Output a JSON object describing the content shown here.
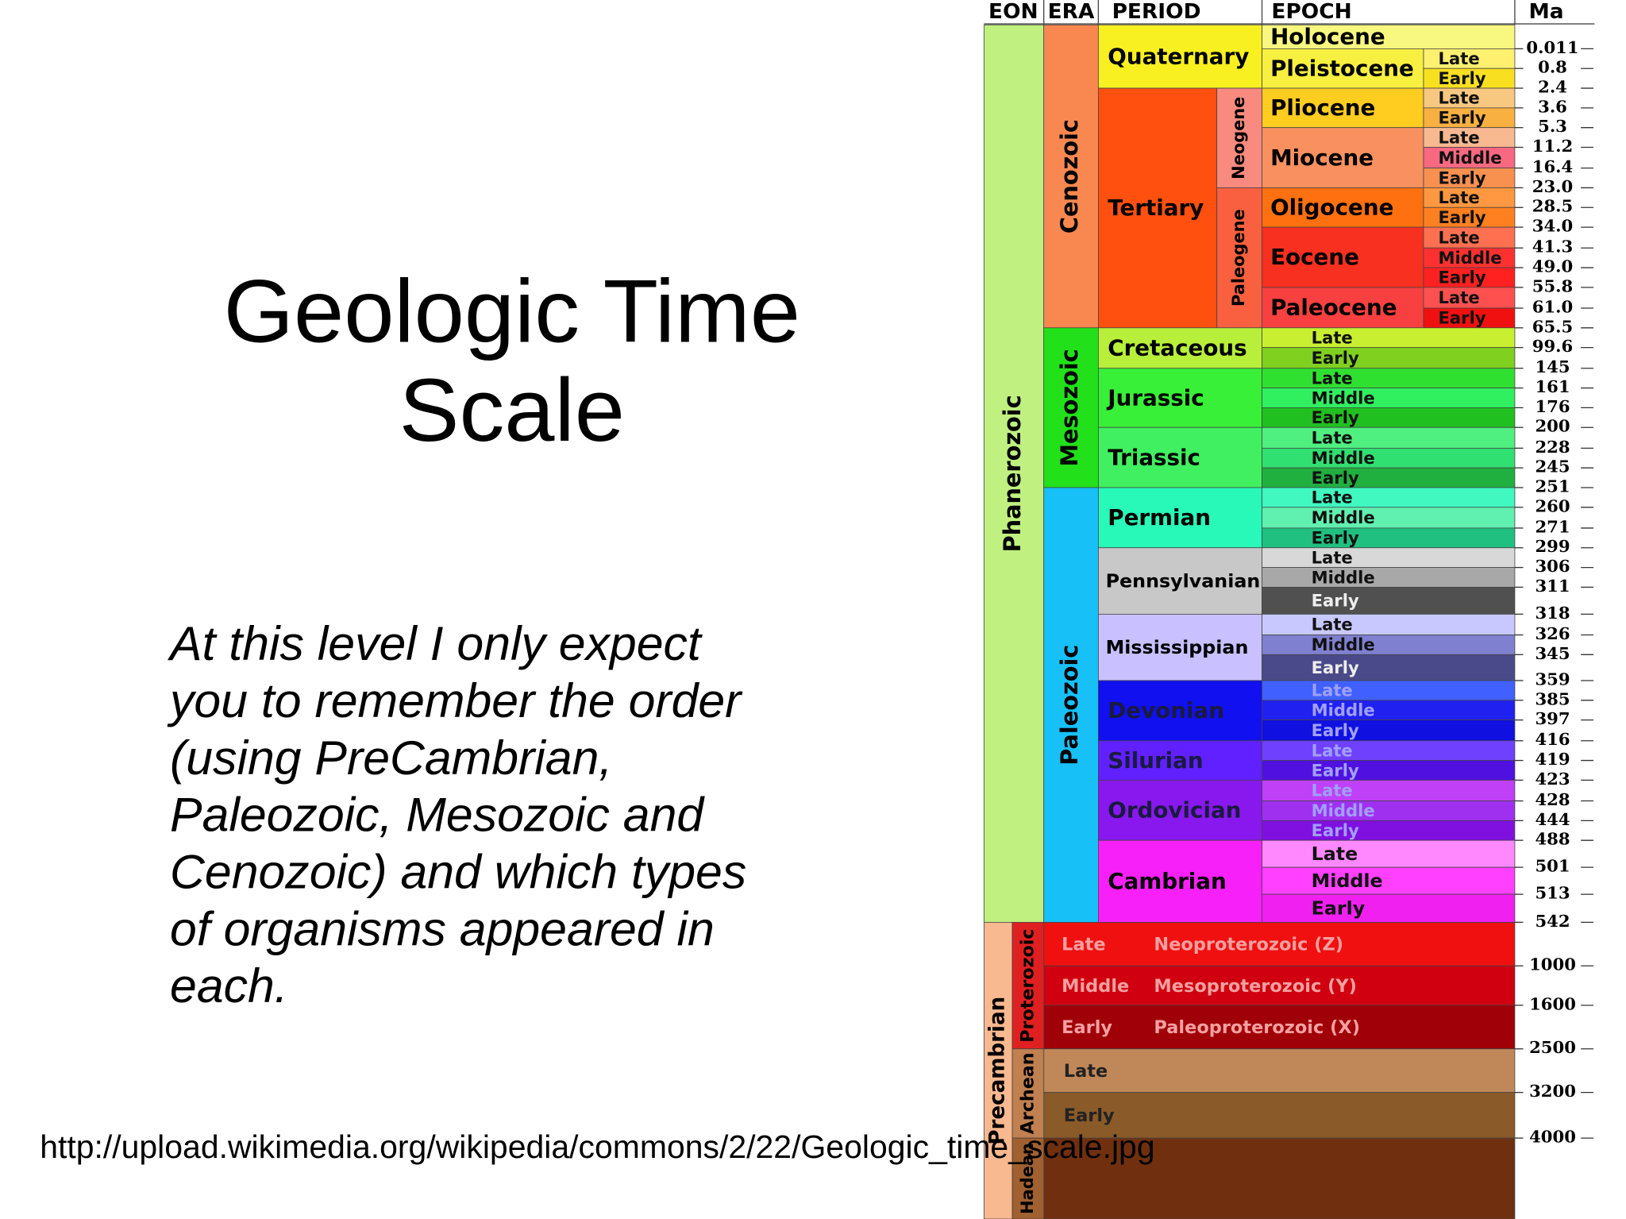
{
  "title": [
    "Geologic Time",
    "Scale"
  ],
  "body": [
    "At this level I only expect",
    "you to remember the order",
    "(using PreCambrian,",
    "Paleozoic, Mesozoic and",
    "Cenozoic) and which types",
    "of organisms appeared in",
    "each."
  ],
  "source": "http://upload.wikimedia.org/wikipedia/commons/2/22/Geologic_time_scale.jpg",
  "chart": {
    "headers": [
      "EON",
      "ERA",
      "PERIOD",
      "EPOCH",
      "Ma"
    ],
    "eons": [
      "Phanerozoic",
      "Precambrian"
    ],
    "eras": [
      "Cenozoic",
      "Mesozoic",
      "Paleozoic",
      "Proterozoic",
      "Archean",
      "Hadean"
    ],
    "periods": [
      "Quaternary",
      "Tertiary",
      "Neogene",
      "Paleogene",
      "Cretaceous",
      "Jurassic",
      "Triassic",
      "Permian",
      "Pennsylvanian",
      "Mississippian",
      "Devonian",
      "Silurian",
      "Ordovician",
      "Cambrian"
    ],
    "epochs": [
      "Holocene",
      "Pleistocene",
      "Pliocene",
      "Miocene",
      "Oligocene",
      "Eocene",
      "Paleocene"
    ],
    "subdivisions": [
      "Late",
      "Early",
      "Late",
      "Early",
      "Late",
      "Middle",
      "Early",
      "Late",
      "Early",
      "Late",
      "Middle",
      "Early",
      "Late",
      "Early",
      "Late",
      "Early",
      "Late",
      "Middle",
      "Early",
      "Late",
      "Middle",
      "Early",
      "Late",
      "Middle",
      "Early",
      "Late",
      "Middle",
      "Early",
      "Late",
      "Middle",
      "Early",
      "Late",
      "Middle",
      "Early",
      "Late",
      "Early",
      "Late",
      "Middle",
      "Early",
      "Late",
      "Middle",
      "Early"
    ],
    "precambrian_rows": [
      [
        "Late",
        "Neoproterozoic (Z)"
      ],
      [
        "Middle",
        "Mesoproterozoic (Y)"
      ],
      [
        "Early",
        "Paleoproterozoic (X)"
      ],
      [
        "Late"
      ],
      [
        "Early"
      ]
    ],
    "ma": [
      "0.011",
      "0.8",
      "2.4",
      "3.6",
      "5.3",
      "11.2",
      "16.4",
      "23.0",
      "28.5",
      "34.0",
      "41.3",
      "49.0",
      "55.8",
      "61.0",
      "65.5",
      "99.6",
      "145",
      "161",
      "176",
      "200",
      "228",
      "245",
      "251",
      "260",
      "271",
      "299",
      "306",
      "311",
      "318",
      "326",
      "345",
      "359",
      "385",
      "397",
      "416",
      "419",
      "423",
      "428",
      "444",
      "488",
      "501",
      "513",
      "542",
      "1000",
      "1600",
      "2500",
      "3200",
      "4000"
    ]
  }
}
